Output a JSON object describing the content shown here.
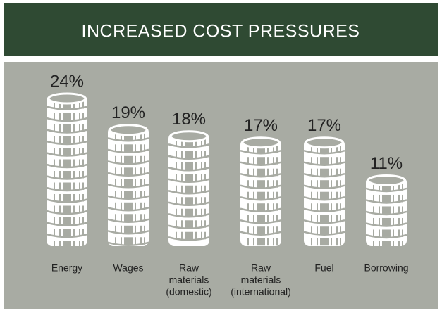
{
  "chart_data": {
    "type": "coin-stack",
    "title": "INCREASED COST PRESSURES",
    "categories": [
      [
        "Energy"
      ],
      [
        "Wages"
      ],
      [
        "Raw",
        "materials",
        "(domestic)"
      ],
      [
        "Raw",
        "materials",
        "(international)"
      ],
      [
        "Fuel"
      ],
      [
        "Borrowing"
      ]
    ],
    "values": [
      24,
      19,
      18,
      17,
      17,
      11
    ],
    "value_labels": [
      "24%",
      "19%",
      "18%",
      "17%",
      "17%",
      "11%"
    ],
    "color": "#ffffff"
  }
}
